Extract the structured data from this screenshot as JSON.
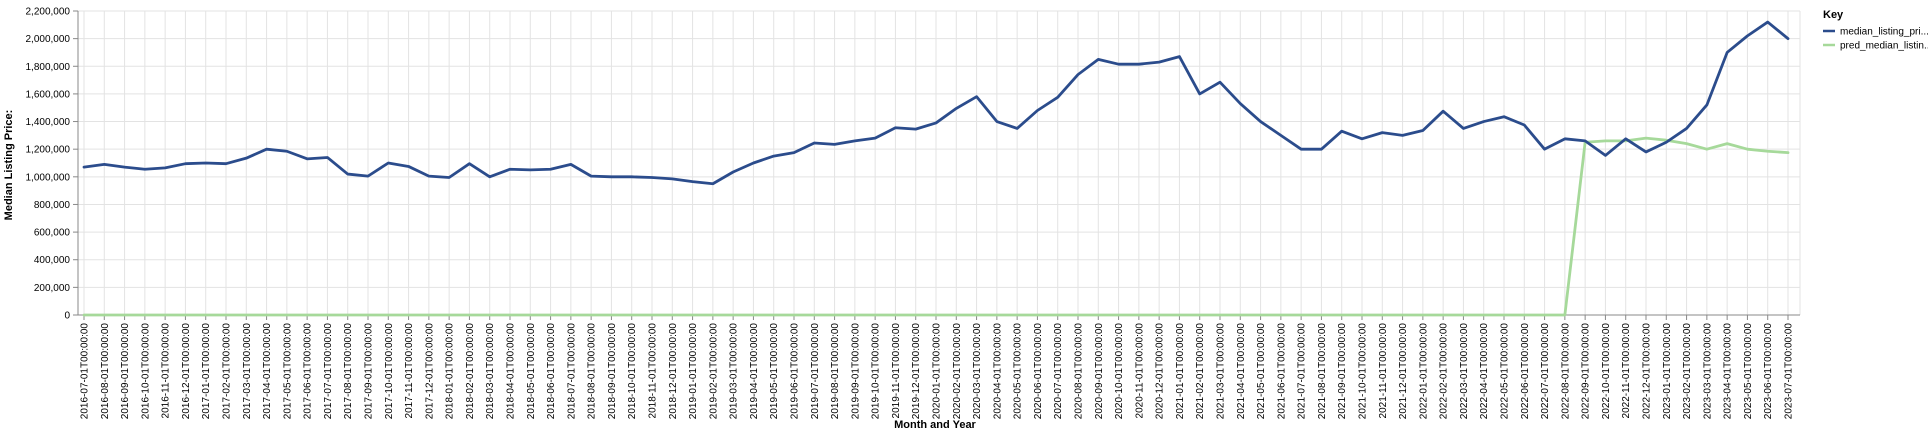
{
  "chart_data": {
    "type": "line",
    "xlabel": "Month and Year",
    "ylabel": "Median Listing Price:",
    "ylim": [
      0,
      2200000
    ],
    "yticks": [
      "0",
      "200,000",
      "400,000",
      "600,000",
      "800,000",
      "1,000,000",
      "1,200,000",
      "1,400,000",
      "1,600,000",
      "1,800,000",
      "2,000,000",
      "2,200,000"
    ],
    "grid": true,
    "legend": {
      "title": "Key",
      "position": "top-right"
    },
    "x": [
      "2016-07-01T00:00:00",
      "2016-08-01T00:00:00",
      "2016-09-01T00:00:00",
      "2016-10-01T00:00:00",
      "2016-11-01T00:00:00",
      "2016-12-01T00:00:00",
      "2017-01-01T00:00:00",
      "2017-02-01T00:00:00",
      "2017-03-01T00:00:00",
      "2017-04-01T00:00:00",
      "2017-05-01T00:00:00",
      "2017-06-01T00:00:00",
      "2017-07-01T00:00:00",
      "2017-08-01T00:00:00",
      "2017-09-01T00:00:00",
      "2017-10-01T00:00:00",
      "2017-11-01T00:00:00",
      "2017-12-01T00:00:00",
      "2018-01-01T00:00:00",
      "2018-02-01T00:00:00",
      "2018-03-01T00:00:00",
      "2018-04-01T00:00:00",
      "2018-05-01T00:00:00",
      "2018-06-01T00:00:00",
      "2018-07-01T00:00:00",
      "2018-08-01T00:00:00",
      "2018-09-01T00:00:00",
      "2018-10-01T00:00:00",
      "2018-11-01T00:00:00",
      "2018-12-01T00:00:00",
      "2019-01-01T00:00:00",
      "2019-02-01T00:00:00",
      "2019-03-01T00:00:00",
      "2019-04-01T00:00:00",
      "2019-05-01T00:00:00",
      "2019-06-01T00:00:00",
      "2019-07-01T00:00:00",
      "2019-08-01T00:00:00",
      "2019-09-01T00:00:00",
      "2019-10-01T00:00:00",
      "2019-11-01T00:00:00",
      "2019-12-01T00:00:00",
      "2020-01-01T00:00:00",
      "2020-02-01T00:00:00",
      "2020-03-01T00:00:00",
      "2020-04-01T00:00:00",
      "2020-05-01T00:00:00",
      "2020-06-01T00:00:00",
      "2020-07-01T00:00:00",
      "2020-08-01T00:00:00",
      "2020-09-01T00:00:00",
      "2020-10-01T00:00:00",
      "2020-11-01T00:00:00",
      "2020-12-01T00:00:00",
      "2021-01-01T00:00:00",
      "2021-02-01T00:00:00",
      "2021-03-01T00:00:00",
      "2021-04-01T00:00:00",
      "2021-05-01T00:00:00",
      "2021-06-01T00:00:00",
      "2021-07-01T00:00:00",
      "2021-08-01T00:00:00",
      "2021-09-01T00:00:00",
      "2021-10-01T00:00:00",
      "2021-11-01T00:00:00",
      "2021-12-01T00:00:00",
      "2022-01-01T00:00:00",
      "2022-02-01T00:00:00",
      "2022-03-01T00:00:00",
      "2022-04-01T00:00:00",
      "2022-05-01T00:00:00",
      "2022-06-01T00:00:00",
      "2022-07-01T00:00:00",
      "2022-08-01T00:00:00",
      "2022-09-01T00:00:00",
      "2022-10-01T00:00:00",
      "2022-11-01T00:00:00",
      "2022-12-01T00:00:00",
      "2023-01-01T00:00:00",
      "2023-02-01T00:00:00",
      "2023-03-01T00:00:00",
      "2023-04-01T00:00:00",
      "2023-05-01T00:00:00",
      "2023-06-01T00:00:00",
      "2023-07-01T00:00:00"
    ],
    "series": [
      {
        "name": "median_listing_pri...",
        "color": "#2b4c8c",
        "values": [
          1070000,
          1090000,
          1070000,
          1055000,
          1065000,
          1095000,
          1100000,
          1095000,
          1135000,
          1200000,
          1185000,
          1130000,
          1140000,
          1020000,
          1005000,
          1100000,
          1075000,
          1005000,
          995000,
          1095000,
          1000000,
          1055000,
          1050000,
          1055000,
          1090000,
          1005000,
          1000000,
          1000000,
          995000,
          985000,
          965000,
          950000,
          1035000,
          1100000,
          1150000,
          1175000,
          1245000,
          1235000,
          1260000,
          1280000,
          1355000,
          1345000,
          1390000,
          1495000,
          1580000,
          1400000,
          1350000,
          1480000,
          1575000,
          1740000,
          1850000,
          1815000,
          1815000,
          1830000,
          1870000,
          1600000,
          1685000,
          1530000,
          1400000,
          1300000,
          1200000,
          1200000,
          1330000,
          1275000,
          1320000,
          1300000,
          1335000,
          1475000,
          1350000,
          1400000,
          1435000,
          1375000,
          1200000,
          1275000,
          1260000,
          1155000,
          1275000,
          1180000,
          1250000,
          1350000,
          1520000,
          1900000,
          2020000,
          2120000,
          2000000
        ]
      },
      {
        "name": "pred_median_listin...",
        "color": "#a6d99a",
        "values": [
          0,
          0,
          0,
          0,
          0,
          0,
          0,
          0,
          0,
          0,
          0,
          0,
          0,
          0,
          0,
          0,
          0,
          0,
          0,
          0,
          0,
          0,
          0,
          0,
          0,
          0,
          0,
          0,
          0,
          0,
          0,
          0,
          0,
          0,
          0,
          0,
          0,
          0,
          0,
          0,
          0,
          0,
          0,
          0,
          0,
          0,
          0,
          0,
          0,
          0,
          0,
          0,
          0,
          0,
          0,
          0,
          0,
          0,
          0,
          0,
          0,
          0,
          0,
          0,
          0,
          0,
          0,
          0,
          0,
          0,
          0,
          0,
          0,
          0,
          1250000,
          1260000,
          1260000,
          1280000,
          1265000,
          1240000,
          1200000,
          1240000,
          1200000,
          1185000,
          1175000
        ]
      }
    ]
  }
}
